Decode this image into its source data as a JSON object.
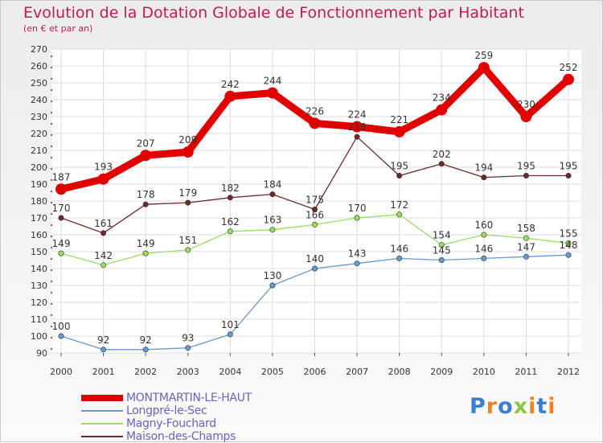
{
  "title": "Evolution de la Dotation Globale de Fonctionnement par Habitant",
  "subtitle": "(en € et par an)",
  "logo": {
    "text": "Proxiti",
    "letters": [
      "P",
      "r",
      "o",
      "x",
      "i",
      "t",
      "i"
    ],
    "colors": [
      "#3a7fd5",
      "#f58220",
      "#3a7fd5",
      "#8cc63f",
      "#f58220",
      "#3a7fd5",
      "#f58220"
    ]
  },
  "chart_data": {
    "type": "line",
    "title": "Evolution de la Dotation Globale de Fonctionnement par Habitant",
    "subtitle": "(en € et par an)",
    "xlabel": "",
    "ylabel": "",
    "ylim": [
      90,
      270
    ],
    "yticks": [
      90,
      100,
      110,
      120,
      130,
      140,
      150,
      160,
      170,
      180,
      190,
      200,
      210,
      220,
      230,
      240,
      250,
      260,
      270
    ],
    "x": [
      "2000",
      "2001",
      "2002",
      "2003",
      "2004",
      "2005",
      "2006",
      "2007",
      "2008",
      "2009",
      "2010",
      "2011",
      "2012"
    ],
    "grid": true,
    "legend_position": "bottom-left",
    "series": [
      {
        "name": "MONTMARTIN-LE-HAUT",
        "color": "#e00000",
        "values": [
          187,
          193,
          207,
          209,
          242,
          244,
          226,
          224,
          221,
          234,
          259,
          230,
          252
        ]
      },
      {
        "name": "Longpré-le-Sec",
        "color": "#6699cc",
        "values": [
          100,
          92,
          92,
          93,
          101,
          130,
          140,
          143,
          146,
          145,
          146,
          147,
          148
        ]
      },
      {
        "name": "Magny-Fouchard",
        "color": "#99dd66",
        "values": [
          149,
          142,
          149,
          151,
          162,
          163,
          166,
          170,
          172,
          154,
          160,
          158,
          155
        ]
      },
      {
        "name": "Maison-des-Champs",
        "color": "#6b2a2a",
        "values": [
          170,
          161,
          178,
          179,
          182,
          184,
          175,
          218,
          195,
          202,
          194,
          195,
          195
        ]
      }
    ]
  }
}
